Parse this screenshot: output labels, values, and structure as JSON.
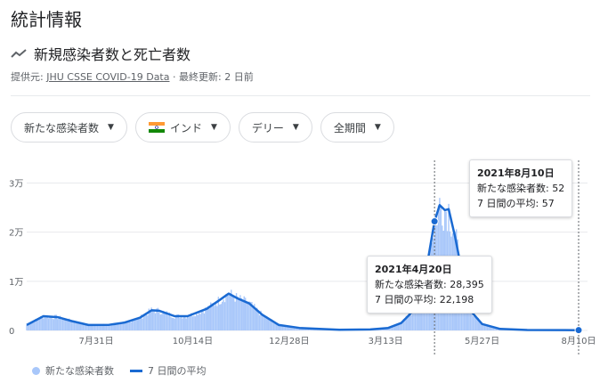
{
  "page": {
    "title": "統計情報"
  },
  "section": {
    "title": "新規感染者数と死亡者数",
    "icon": "trend-line-icon",
    "source_label": "提供元:",
    "source_link": "JHU CSSE COVID-19 Data",
    "updated": " · 最終更新: 2 日前"
  },
  "filters": [
    {
      "label": "新たな感染者数"
    },
    {
      "label": "インド",
      "icon": "india-flag-icon"
    },
    {
      "label": "デリー"
    },
    {
      "label": "全期間"
    }
  ],
  "colors": {
    "bars": "#a8c7fa",
    "line": "#1a6ad2",
    "grid": "#e8eaed"
  },
  "chart_data": {
    "type": "bar",
    "y_ticks": [
      "0",
      "1万",
      "2万",
      "3万"
    ],
    "y_tick_values": [
      0,
      10000,
      20000,
      30000
    ],
    "x_ticks": [
      "7月31日",
      "10月14日",
      "12月28日",
      "3月13日",
      "5月27日",
      "8月10日"
    ],
    "x_tick_dates": [
      "2020-07-31",
      "2020-10-14",
      "2020-12-28",
      "2021-03-13",
      "2021-05-27",
      "2021-08-10"
    ],
    "x_range": [
      "2020-06-07",
      "2021-08-10"
    ],
    "ylim": [
      0,
      31000
    ],
    "series": [
      {
        "name": "新たな感染者数",
        "kind": "bars"
      },
      {
        "name": "7 日間の平均",
        "kind": "line"
      }
    ],
    "avg_points": [
      {
        "date": "2020-06-07",
        "value": 1100
      },
      {
        "date": "2020-06-20",
        "value": 2900
      },
      {
        "date": "2020-07-01",
        "value": 2700
      },
      {
        "date": "2020-07-12",
        "value": 1900
      },
      {
        "date": "2020-07-25",
        "value": 1100
      },
      {
        "date": "2020-08-10",
        "value": 1150
      },
      {
        "date": "2020-08-22",
        "value": 1600
      },
      {
        "date": "2020-09-03",
        "value": 2600
      },
      {
        "date": "2020-09-12",
        "value": 4100
      },
      {
        "date": "2020-09-18",
        "value": 4000
      },
      {
        "date": "2020-09-30",
        "value": 2900
      },
      {
        "date": "2020-10-10",
        "value": 2900
      },
      {
        "date": "2020-10-25",
        "value": 4400
      },
      {
        "date": "2020-11-04",
        "value": 6200
      },
      {
        "date": "2020-11-11",
        "value": 7500
      },
      {
        "date": "2020-11-18",
        "value": 6500
      },
      {
        "date": "2020-11-27",
        "value": 5500
      },
      {
        "date": "2020-12-07",
        "value": 3200
      },
      {
        "date": "2020-12-20",
        "value": 1100
      },
      {
        "date": "2021-01-05",
        "value": 500
      },
      {
        "date": "2021-02-05",
        "value": 150
      },
      {
        "date": "2021-03-01",
        "value": 200
      },
      {
        "date": "2021-03-15",
        "value": 500
      },
      {
        "date": "2021-03-25",
        "value": 1500
      },
      {
        "date": "2021-04-05",
        "value": 4400
      },
      {
        "date": "2021-04-12",
        "value": 10000
      },
      {
        "date": "2021-04-20",
        "value": 22198
      },
      {
        "date": "2021-04-24",
        "value": 25500
      },
      {
        "date": "2021-04-28",
        "value": 24500
      },
      {
        "date": "2021-05-01",
        "value": 24700
      },
      {
        "date": "2021-05-06",
        "value": 19000
      },
      {
        "date": "2021-05-12",
        "value": 11000
      },
      {
        "date": "2021-05-18",
        "value": 4000
      },
      {
        "date": "2021-05-27",
        "value": 1300
      },
      {
        "date": "2021-06-10",
        "value": 300
      },
      {
        "date": "2021-07-01",
        "value": 90
      },
      {
        "date": "2021-08-10",
        "value": 57
      }
    ],
    "tooltips": [
      {
        "date_label": "2021年4月20日",
        "date": "2021-04-20",
        "cases_label": "新たな感染者数: 28,395",
        "avg_label": "7 日間の平均: 22,198",
        "cases": 28395,
        "avg": 22198
      },
      {
        "date_label": "2021年8月10日",
        "date": "2021-08-10",
        "cases_label": "新たな感染者数: 52",
        "avg_label": "7 日間の平均: 57",
        "cases": 52,
        "avg": 57
      }
    ]
  },
  "legend": {
    "cases": "新たな感染者数",
    "avg": "7 日間の平均"
  }
}
